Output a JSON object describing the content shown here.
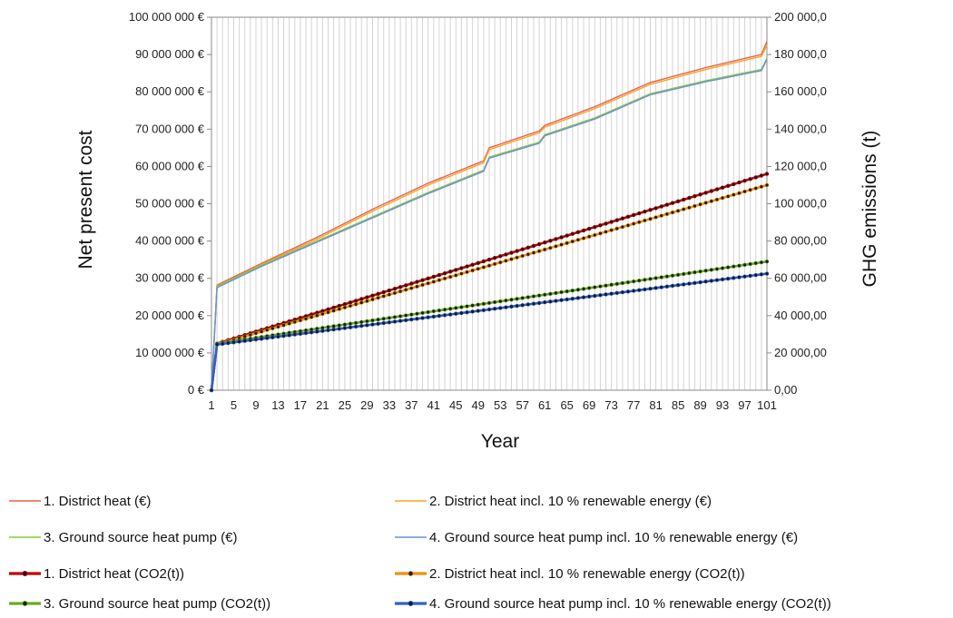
{
  "chart_data": {
    "type": "line",
    "title": "",
    "xlabel": "Year",
    "ylabel_left": "Net present cost",
    "ylabel_right": "GHG emissions (t)",
    "ylim_left": [
      0,
      100000000
    ],
    "ylim_right": [
      0,
      200000
    ],
    "left_ticks": [
      "0 €",
      "10 000 000 €",
      "20 000 000 €",
      "30 000 000 €",
      "40 000 000 €",
      "50 000 000 €",
      "60 000 000 €",
      "70 000 000 €",
      "80 000 000 €",
      "90 000 000 €",
      "100 000 000 €"
    ],
    "right_ticks": [
      "0,00",
      "20 000,00",
      "40 000,00",
      "60 000,00",
      "80 000,00",
      "100 000,0",
      "120 000,0",
      "140 000,0",
      "160 000,0",
      "180 000,0",
      "200 000,0"
    ],
    "x_ticks": [
      "1",
      "5",
      "9",
      "13",
      "17",
      "21",
      "25",
      "29",
      "33",
      "37",
      "41",
      "45",
      "49",
      "53",
      "57",
      "61",
      "65",
      "69",
      "73",
      "77",
      "81",
      "85",
      "89",
      "93",
      "97",
      "101"
    ],
    "x_range": [
      1,
      101
    ],
    "grid": "vertical",
    "legend_position": "bottom",
    "series": [
      {
        "name": "1. District heat (€)",
        "axis": "left",
        "color": "#e8604c",
        "marker": false,
        "points": [
          [
            1,
            0
          ],
          [
            2,
            28200000
          ],
          [
            10,
            34000000
          ],
          [
            20,
            41000000
          ],
          [
            30,
            48500000
          ],
          [
            40,
            55500000
          ],
          [
            50,
            61500000
          ],
          [
            51,
            65000000
          ],
          [
            60,
            69500000
          ],
          [
            61,
            71000000
          ],
          [
            70,
            76000000
          ],
          [
            80,
            82500000
          ],
          [
            90,
            86500000
          ],
          [
            100,
            90000000
          ],
          [
            101,
            93500000
          ]
        ]
      },
      {
        "name": "2. District heat incl. 10 % renewable energy (€)",
        "axis": "left",
        "color": "#f5a623",
        "marker": false,
        "points": [
          [
            1,
            0
          ],
          [
            2,
            27800000
          ],
          [
            10,
            33700000
          ],
          [
            20,
            40500000
          ],
          [
            30,
            48000000
          ],
          [
            40,
            55000000
          ],
          [
            50,
            61000000
          ],
          [
            51,
            64500000
          ],
          [
            60,
            69000000
          ],
          [
            61,
            70500000
          ],
          [
            70,
            75500000
          ],
          [
            80,
            82000000
          ],
          [
            90,
            86000000
          ],
          [
            100,
            89500000
          ],
          [
            101,
            92500000
          ]
        ]
      },
      {
        "name": "3. Ground source heat pump (€)",
        "axis": "left",
        "color": "#8cc63f",
        "marker": false,
        "points": [
          [
            1,
            0
          ],
          [
            2,
            28000000
          ],
          [
            10,
            33500000
          ],
          [
            20,
            40000000
          ],
          [
            30,
            46500000
          ],
          [
            40,
            53000000
          ],
          [
            50,
            59000000
          ],
          [
            51,
            62500000
          ],
          [
            60,
            66500000
          ],
          [
            61,
            68500000
          ],
          [
            70,
            73000000
          ],
          [
            80,
            79500000
          ],
          [
            90,
            83000000
          ],
          [
            100,
            86000000
          ],
          [
            101,
            89000000
          ]
        ]
      },
      {
        "name": "4. Ground source heat pump incl. 10 % renewable energy (€)",
        "axis": "left",
        "color": "#6a8fd8",
        "marker": false,
        "points": [
          [
            1,
            0
          ],
          [
            2,
            27500000
          ],
          [
            10,
            33200000
          ],
          [
            20,
            39700000
          ],
          [
            30,
            46200000
          ],
          [
            40,
            52700000
          ],
          [
            50,
            58700000
          ],
          [
            51,
            62200000
          ],
          [
            60,
            66200000
          ],
          [
            61,
            68200000
          ],
          [
            70,
            72700000
          ],
          [
            80,
            79200000
          ],
          [
            90,
            82700000
          ],
          [
            100,
            85700000
          ],
          [
            101,
            88700000
          ]
        ]
      },
      {
        "name": "1. District heat (CO2(t))",
        "axis": "right",
        "color": "#c00000",
        "marker": true,
        "points": [
          [
            1,
            0
          ],
          [
            2,
            25000
          ],
          [
            101,
            116000
          ]
        ]
      },
      {
        "name": "2. District heat incl. 10 % renewable energy (CO2(t))",
        "axis": "right",
        "color": "#f0900f",
        "marker": true,
        "points": [
          [
            1,
            0
          ],
          [
            2,
            24500
          ],
          [
            101,
            110000
          ]
        ]
      },
      {
        "name": "3. Ground source heat pump (CO2(t))",
        "axis": "right",
        "color": "#6bab1f",
        "marker": true,
        "points": [
          [
            1,
            0
          ],
          [
            2,
            25000
          ],
          [
            101,
            69000
          ]
        ]
      },
      {
        "name": "4. Ground source heat pump incl. 10 % renewable energy (CO2(t))",
        "axis": "right",
        "color": "#2f5fcf",
        "marker": true,
        "points": [
          [
            1,
            0
          ],
          [
            2,
            24500
          ],
          [
            101,
            62500
          ]
        ]
      }
    ]
  }
}
